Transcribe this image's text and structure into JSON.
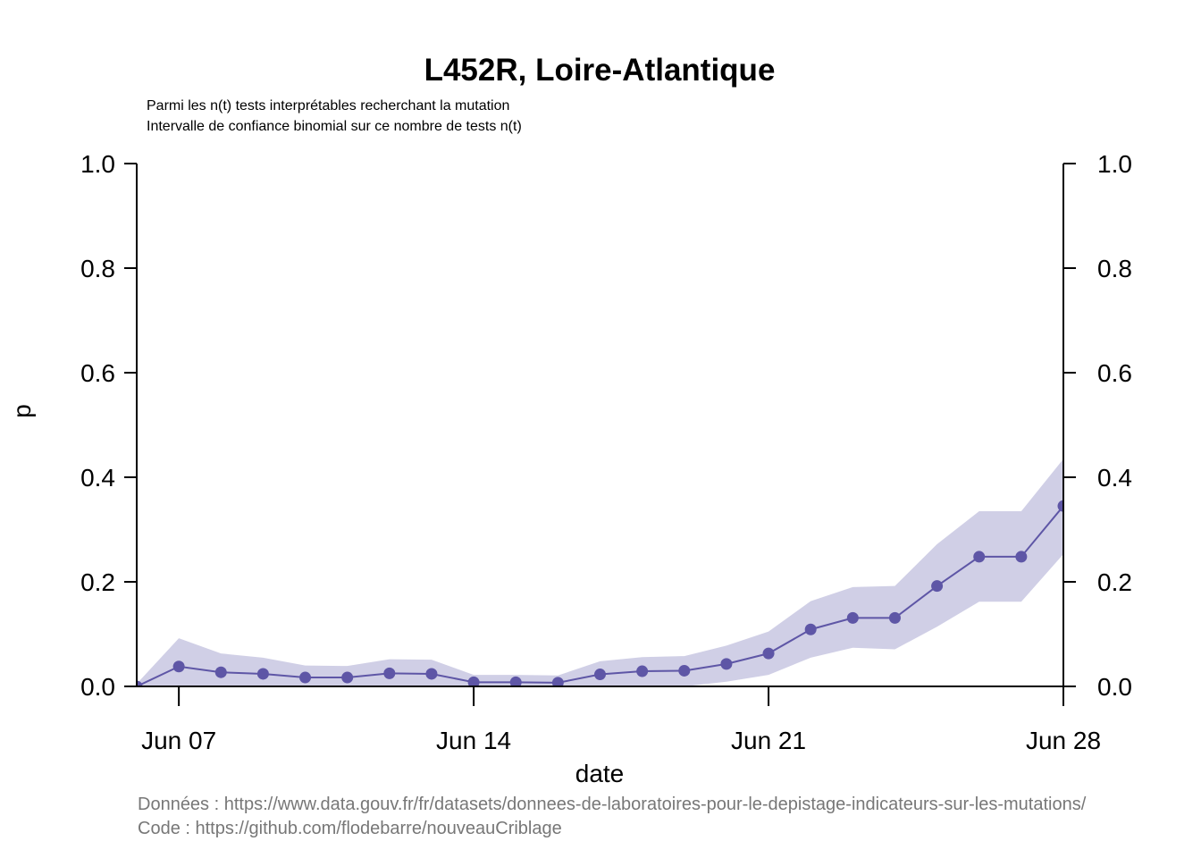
{
  "chart_data": {
    "type": "line",
    "title": "L452R, Loire-Atlantique",
    "subtitle_lines": [
      "Parmi les n(t) tests interprétables recherchant la mutation",
      "Intervalle de confiance binomial sur ce nombre de tests n(t)"
    ],
    "xlabel": "date",
    "ylabel": "p",
    "ylim": [
      0,
      1
    ],
    "y_ticks": [
      "0.0",
      "0.2",
      "0.4",
      "0.6",
      "0.8",
      "1.0"
    ],
    "y_tick_values": [
      0,
      0.2,
      0.4,
      0.6,
      0.8,
      1.0
    ],
    "x_ticks": [
      {
        "label": "Jun 07",
        "date": "2021-06-07"
      },
      {
        "label": "Jun 14",
        "date": "2021-06-14"
      },
      {
        "label": "Jun 21",
        "date": "2021-06-21"
      },
      {
        "label": "Jun 28",
        "date": "2021-06-28"
      }
    ],
    "xlim": [
      "2021-06-06",
      "2021-06-28"
    ],
    "line_color": "#5e56a6",
    "band_color": "#d0cfe6",
    "series": [
      {
        "x": [
          "2021-06-06",
          "2021-06-07",
          "2021-06-08",
          "2021-06-09",
          "2021-06-10",
          "2021-06-11",
          "2021-06-12",
          "2021-06-13",
          "2021-06-14",
          "2021-06-15",
          "2021-06-16",
          "2021-06-17",
          "2021-06-18",
          "2021-06-19",
          "2021-06-20",
          "2021-06-21",
          "2021-06-22",
          "2021-06-23",
          "2021-06-24",
          "2021-06-25",
          "2021-06-26",
          "2021-06-27",
          "2021-06-28"
        ],
        "values": [
          0.0,
          0.038,
          0.027,
          0.024,
          0.017,
          0.017,
          0.025,
          0.024,
          0.008,
          0.008,
          0.007,
          0.023,
          0.029,
          0.03,
          0.043,
          0.063,
          0.109,
          0.131,
          0.131,
          0.192,
          0.248,
          0.248,
          0.345
        ],
        "lower": [
          0.0,
          0.0,
          0.0,
          0.0,
          0.0,
          0.0,
          0.0,
          0.0,
          0.0,
          0.0,
          0.0,
          0.0,
          0.0,
          0.0,
          0.009,
          0.022,
          0.055,
          0.074,
          0.071,
          0.114,
          0.162,
          0.162,
          0.253
        ],
        "upper": [
          0.005,
          0.092,
          0.063,
          0.055,
          0.04,
          0.039,
          0.052,
          0.051,
          0.022,
          0.022,
          0.021,
          0.048,
          0.056,
          0.058,
          0.078,
          0.105,
          0.163,
          0.19,
          0.192,
          0.272,
          0.335,
          0.335,
          0.435
        ]
      }
    ]
  },
  "footer": {
    "data_source": "Données : https://www.data.gouv.fr/fr/datasets/donnees-de-laboratoires-pour-le-depistage-indicateurs-sur-les-mutations/",
    "code_source": "Code : https://github.com/flodebarre/nouveauCriblage"
  }
}
